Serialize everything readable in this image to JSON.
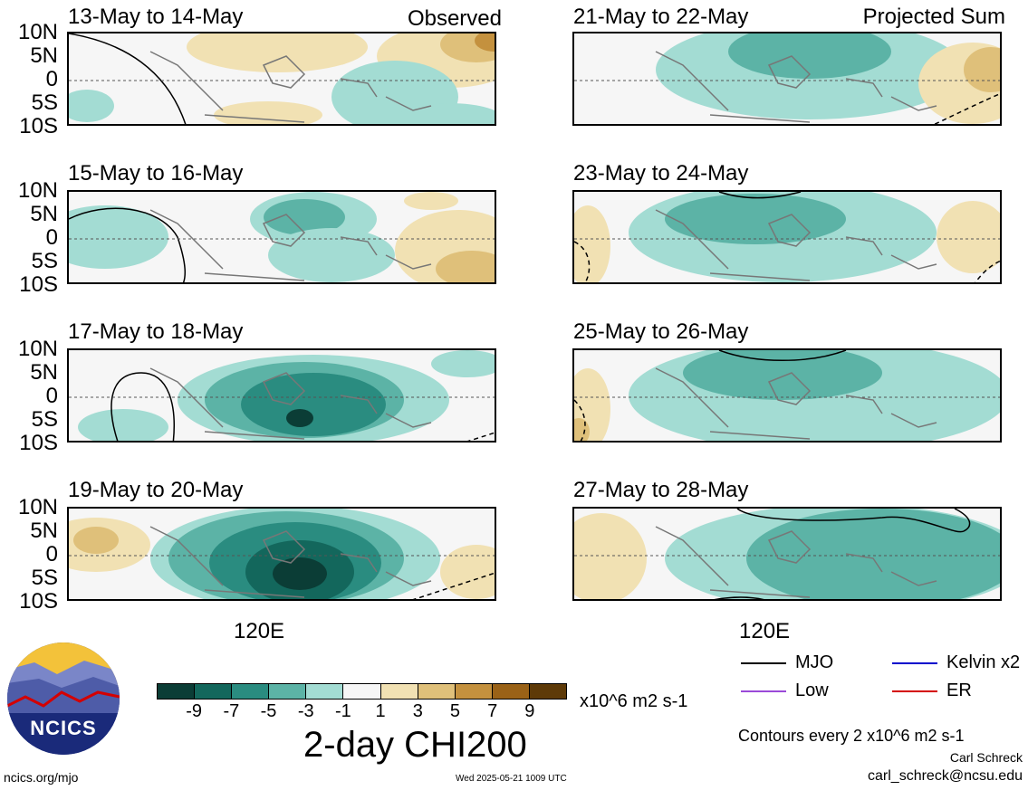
{
  "panels": {
    "left": [
      {
        "title": "13-May to 14-May",
        "corner": "Observed"
      },
      {
        "title": "15-May to 16-May",
        "corner": ""
      },
      {
        "title": "17-May to 18-May",
        "corner": ""
      },
      {
        "title": "19-May to 20-May",
        "corner": ""
      }
    ],
    "right": [
      {
        "title": "21-May to 22-May",
        "corner": "Projected Sum"
      },
      {
        "title": "23-May to 24-May",
        "corner": ""
      },
      {
        "title": "25-May to 26-May",
        "corner": ""
      },
      {
        "title": "27-May to 28-May",
        "corner": ""
      }
    ]
  },
  "lat_labels": [
    "10N",
    "5N",
    "0",
    "5S",
    "10S"
  ],
  "lon_label": "120E",
  "colorbar": {
    "ticks": [
      "-9",
      "-7",
      "-5",
      "-3",
      "-1",
      "1",
      "3",
      "5",
      "7",
      "9"
    ],
    "colors": [
      "#0b3d36",
      "#13675c",
      "#2a8c80",
      "#5cb3a6",
      "#a3dcd3",
      "#f6f6f6",
      "#f1e1b3",
      "#dfc07a",
      "#c4913e",
      "#9a6217",
      "#5e3a08"
    ],
    "units": "x10^6 m2 s-1",
    "title": "2-day CHI200"
  },
  "legend": {
    "items": [
      {
        "label": "MJO",
        "color": "#000000"
      },
      {
        "label": "Kelvin x2",
        "color": "#0000cc"
      },
      {
        "label": "Low",
        "color": "#9a4ad8"
      },
      {
        "label": "ER",
        "color": "#d40000"
      }
    ],
    "contours": "Contours every 2 x10^6 m2 s-1"
  },
  "credits": {
    "author": "Carl Schreck",
    "email": "carl_schreck@ncsu.edu",
    "site": "ncics.org/mjo",
    "timestamp": "Wed 2025-05-21 1009 UTC"
  },
  "logo_text": "NCICS"
}
